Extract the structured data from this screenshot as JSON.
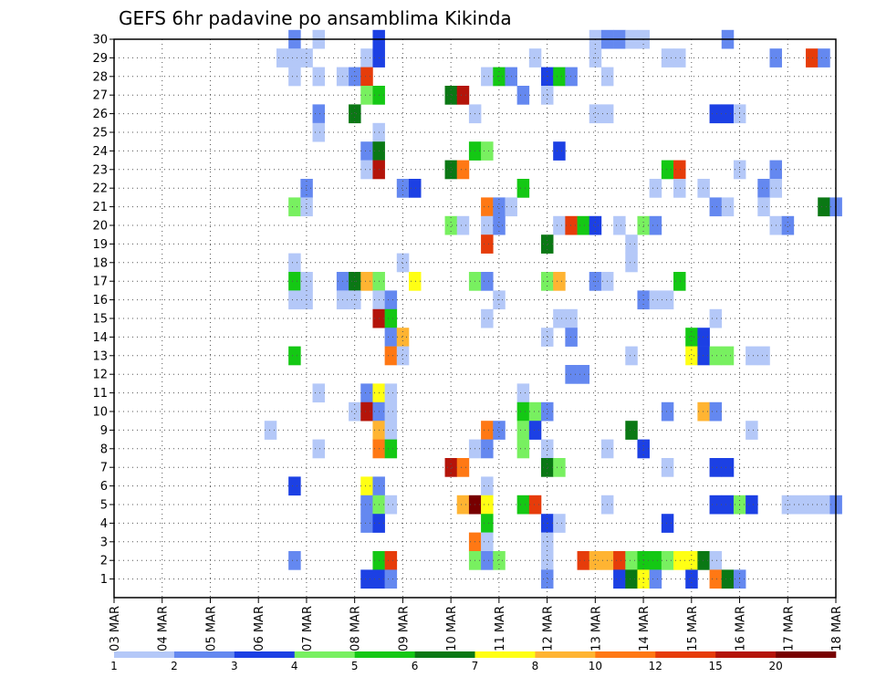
{
  "chart_data": {
    "type": "heatmap",
    "title": "GEFS 6hr padavine po ansamblima Kikinda",
    "x_tick_labels": [
      "03 MAR",
      "04 MAR",
      "05 MAR",
      "06 MAR",
      "07 MAR",
      "08 MAR",
      "09 MAR",
      "10 MAR",
      "11 MAR",
      "12 MAR",
      "13 MAR",
      "14 MAR",
      "15 MAR",
      "16 MAR",
      "17 MAR",
      "18 MAR"
    ],
    "y_tick_labels": [
      "1",
      "2",
      "3",
      "4",
      "5",
      "6",
      "7",
      "8",
      "9",
      "10",
      "11",
      "12",
      "13",
      "14",
      "15",
      "16",
      "17",
      "18",
      "19",
      "20",
      "21",
      "22",
      "23",
      "24",
      "25",
      "26",
      "27",
      "28",
      "29",
      "30"
    ],
    "xlim": [
      0,
      60
    ],
    "ylim": [
      0,
      30
    ],
    "x_unit": "6-hour steps from 03 MAR 00Z",
    "grid": true,
    "legend": {
      "position": "bottom",
      "tick_labels": [
        "1",
        "2",
        "3",
        "4",
        "5",
        "6",
        "7",
        "8",
        "10",
        "12",
        "15",
        "20"
      ],
      "colors": [
        "#b4c8f8",
        "#6488f0",
        "#1c40e4",
        "#78f060",
        "#14c814",
        "#0a7814",
        "#ffff14",
        "#ffb432",
        "#ff7814",
        "#e63c0a",
        "#b4140a",
        "#780000"
      ]
    },
    "palette": {
      "c1": "#b4c8f8",
      "c2": "#6488f0",
      "c3": "#1c40e4",
      "c4": "#78f060",
      "c5": "#14c814",
      "c6": "#0a7814",
      "c7": "#ffff14",
      "c8": "#ffb432",
      "c9": "#ff7814",
      "c10": "#e63c0a",
      "c11": "#b4140a",
      "c12": "#780000"
    },
    "cells": [
      [
        "30",
        [
          [
            15,
            "c2"
          ],
          [
            17,
            "c1"
          ],
          [
            22,
            "c3"
          ],
          [
            40,
            "c1"
          ],
          [
            41,
            "c2"
          ],
          [
            42,
            "c2"
          ],
          [
            43,
            "c1"
          ],
          [
            44,
            "c1"
          ],
          [
            51,
            "c2"
          ]
        ]
      ],
      [
        "29",
        [
          [
            14,
            "c1"
          ],
          [
            15,
            "c1"
          ],
          [
            16,
            "c1"
          ],
          [
            21,
            "c1"
          ],
          [
            22,
            "c3"
          ],
          [
            35,
            "c1"
          ],
          [
            40,
            "c1"
          ],
          [
            46,
            "c1"
          ],
          [
            47,
            "c1"
          ],
          [
            55,
            "c2"
          ],
          [
            58,
            "c10"
          ],
          [
            59,
            "c2"
          ]
        ]
      ],
      [
        "28",
        [
          [
            15,
            "c1"
          ],
          [
            17,
            "c1"
          ],
          [
            19,
            "c1"
          ],
          [
            20,
            "c2"
          ],
          [
            21,
            "c10"
          ],
          [
            31,
            "c1"
          ],
          [
            32,
            "c5"
          ],
          [
            33,
            "c2"
          ],
          [
            36,
            "c3"
          ],
          [
            37,
            "c5"
          ],
          [
            38,
            "c2"
          ],
          [
            41,
            "c1"
          ]
        ]
      ],
      [
        "27",
        [
          [
            21,
            "c4"
          ],
          [
            22,
            "c5"
          ],
          [
            28,
            "c6"
          ],
          [
            29,
            "c11"
          ],
          [
            34,
            "c2"
          ],
          [
            36,
            "c1"
          ]
        ]
      ],
      [
        "26",
        [
          [
            17,
            "c2"
          ],
          [
            20,
            "c6"
          ],
          [
            30,
            "c1"
          ],
          [
            40,
            "c1"
          ],
          [
            41,
            "c1"
          ],
          [
            50,
            "c3"
          ],
          [
            51,
            "c3"
          ],
          [
            52,
            "c1"
          ]
        ]
      ],
      [
        "25",
        [
          [
            17,
            "c1"
          ],
          [
            22,
            "c1"
          ]
        ]
      ],
      [
        "24",
        [
          [
            21,
            "c2"
          ],
          [
            22,
            "c6"
          ],
          [
            30,
            "c5"
          ],
          [
            31,
            "c4"
          ],
          [
            37,
            "c3"
          ]
        ]
      ],
      [
        "23",
        [
          [
            21,
            "c1"
          ],
          [
            22,
            "c11"
          ],
          [
            28,
            "c6"
          ],
          [
            29,
            "c9"
          ],
          [
            46,
            "c5"
          ],
          [
            47,
            "c10"
          ],
          [
            52,
            "c1"
          ],
          [
            55,
            "c2"
          ]
        ]
      ],
      [
        "22",
        [
          [
            16,
            "c2"
          ],
          [
            24,
            "c2"
          ],
          [
            25,
            "c3"
          ],
          [
            34,
            "c5"
          ],
          [
            45,
            "c1"
          ],
          [
            47,
            "c1"
          ],
          [
            49,
            "c1"
          ],
          [
            54,
            "c2"
          ],
          [
            55,
            "c1"
          ]
        ]
      ],
      [
        "21",
        [
          [
            15,
            "c4"
          ],
          [
            16,
            "c1"
          ],
          [
            31,
            "c9"
          ],
          [
            32,
            "c2"
          ],
          [
            33,
            "c1"
          ],
          [
            50,
            "c2"
          ],
          [
            51,
            "c1"
          ],
          [
            54,
            "c1"
          ],
          [
            59,
            "c6"
          ],
          [
            60,
            "c2"
          ]
        ]
      ],
      [
        "20",
        [
          [
            28,
            "c4"
          ],
          [
            29,
            "c1"
          ],
          [
            31,
            "c1"
          ],
          [
            32,
            "c2"
          ],
          [
            37,
            "c1"
          ],
          [
            38,
            "c10"
          ],
          [
            39,
            "c5"
          ],
          [
            40,
            "c3"
          ],
          [
            42,
            "c1"
          ],
          [
            44,
            "c4"
          ],
          [
            45,
            "c2"
          ],
          [
            55,
            "c1"
          ],
          [
            56,
            "c2"
          ]
        ]
      ],
      [
        "19",
        [
          [
            31,
            "c10"
          ],
          [
            36,
            "c6"
          ],
          [
            43,
            "c1"
          ]
        ]
      ],
      [
        "18",
        [
          [
            15,
            "c1"
          ],
          [
            24,
            "c1"
          ],
          [
            43,
            "c1"
          ]
        ]
      ],
      [
        "17",
        [
          [
            15,
            "c5"
          ],
          [
            16,
            "c1"
          ],
          [
            19,
            "c2"
          ],
          [
            20,
            "c6"
          ],
          [
            21,
            "c8"
          ],
          [
            22,
            "c4"
          ],
          [
            25,
            "c7"
          ],
          [
            30,
            "c4"
          ],
          [
            31,
            "c2"
          ],
          [
            36,
            "c4"
          ],
          [
            37,
            "c8"
          ],
          [
            40,
            "c2"
          ],
          [
            41,
            "c1"
          ],
          [
            47,
            "c5"
          ]
        ]
      ],
      [
        "16",
        [
          [
            15,
            "c1"
          ],
          [
            16,
            "c1"
          ],
          [
            19,
            "c1"
          ],
          [
            20,
            "c1"
          ],
          [
            22,
            "c1"
          ],
          [
            23,
            "c2"
          ],
          [
            32,
            "c1"
          ],
          [
            44,
            "c2"
          ],
          [
            45,
            "c1"
          ],
          [
            46,
            "c1"
          ]
        ]
      ],
      [
        "15",
        [
          [
            22,
            "c11"
          ],
          [
            23,
            "c5"
          ],
          [
            31,
            "c1"
          ],
          [
            37,
            "c1"
          ],
          [
            38,
            "c1"
          ],
          [
            50,
            "c1"
          ]
        ]
      ],
      [
        "14",
        [
          [
            23,
            "c2"
          ],
          [
            24,
            "c8"
          ],
          [
            36,
            "c1"
          ],
          [
            38,
            "c2"
          ],
          [
            48,
            "c5"
          ],
          [
            49,
            "c3"
          ]
        ]
      ],
      [
        "13",
        [
          [
            15,
            "c5"
          ],
          [
            23,
            "c9"
          ],
          [
            24,
            "c1"
          ],
          [
            43,
            "c1"
          ],
          [
            48,
            "c7"
          ],
          [
            49,
            "c3"
          ],
          [
            50,
            "c4"
          ],
          [
            51,
            "c4"
          ],
          [
            53,
            "c1"
          ],
          [
            54,
            "c1"
          ]
        ]
      ],
      [
        "12",
        [
          [
            38,
            "c2"
          ],
          [
            39,
            "c2"
          ]
        ]
      ],
      [
        "11",
        [
          [
            17,
            "c1"
          ],
          [
            21,
            "c2"
          ],
          [
            22,
            "c7"
          ],
          [
            23,
            "c1"
          ],
          [
            34,
            "c1"
          ]
        ]
      ],
      [
        "10",
        [
          [
            20,
            "c1"
          ],
          [
            21,
            "c11"
          ],
          [
            22,
            "c2"
          ],
          [
            23,
            "c1"
          ],
          [
            34,
            "c5"
          ],
          [
            35,
            "c4"
          ],
          [
            36,
            "c2"
          ],
          [
            46,
            "c2"
          ],
          [
            49,
            "c8"
          ],
          [
            50,
            "c2"
          ]
        ]
      ],
      [
        "9",
        [
          [
            13,
            "c1"
          ],
          [
            22,
            "c8"
          ],
          [
            23,
            "c1"
          ],
          [
            31,
            "c9"
          ],
          [
            32,
            "c2"
          ],
          [
            34,
            "c4"
          ],
          [
            35,
            "c3"
          ],
          [
            43,
            "c6"
          ],
          [
            53,
            "c1"
          ]
        ]
      ],
      [
        "8",
        [
          [
            17,
            "c1"
          ],
          [
            22,
            "c9"
          ],
          [
            23,
            "c5"
          ],
          [
            30,
            "c1"
          ],
          [
            31,
            "c2"
          ],
          [
            34,
            "c4"
          ],
          [
            36,
            "c1"
          ],
          [
            41,
            "c1"
          ],
          [
            44,
            "c3"
          ]
        ]
      ],
      [
        "7",
        [
          [
            28,
            "c11"
          ],
          [
            29,
            "c9"
          ],
          [
            36,
            "c6"
          ],
          [
            37,
            "c4"
          ],
          [
            46,
            "c1"
          ],
          [
            50,
            "c3"
          ],
          [
            51,
            "c3"
          ]
        ]
      ],
      [
        "6",
        [
          [
            15,
            "c3"
          ],
          [
            21,
            "c7"
          ],
          [
            22,
            "c2"
          ],
          [
            31,
            "c1"
          ]
        ]
      ],
      [
        "5",
        [
          [
            21,
            "c2"
          ],
          [
            22,
            "c4"
          ],
          [
            23,
            "c1"
          ],
          [
            29,
            "c8"
          ],
          [
            30,
            "c12"
          ],
          [
            31,
            "c7"
          ],
          [
            34,
            "c5"
          ],
          [
            35,
            "c10"
          ],
          [
            41,
            "c1"
          ],
          [
            50,
            "c3"
          ],
          [
            51,
            "c3"
          ],
          [
            52,
            "c4"
          ],
          [
            53,
            "c3"
          ],
          [
            56,
            "c1"
          ],
          [
            57,
            "c1"
          ],
          [
            58,
            "c1"
          ],
          [
            59,
            "c1"
          ],
          [
            60,
            "c2"
          ]
        ]
      ],
      [
        "4",
        [
          [
            21,
            "c2"
          ],
          [
            22,
            "c3"
          ],
          [
            31,
            "c5"
          ],
          [
            36,
            "c3"
          ],
          [
            37,
            "c1"
          ],
          [
            46,
            "c3"
          ]
        ]
      ],
      [
        "3",
        [
          [
            30,
            "c9"
          ],
          [
            31,
            "c1"
          ],
          [
            36,
            "c1"
          ]
        ]
      ],
      [
        "2",
        [
          [
            15,
            "c2"
          ],
          [
            22,
            "c5"
          ],
          [
            23,
            "c10"
          ],
          [
            30,
            "c4"
          ],
          [
            31,
            "c2"
          ],
          [
            32,
            "c4"
          ],
          [
            36,
            "c1"
          ],
          [
            39,
            "c10"
          ],
          [
            40,
            "c8"
          ],
          [
            41,
            "c8"
          ],
          [
            42,
            "c10"
          ],
          [
            43,
            "c4"
          ],
          [
            44,
            "c5"
          ],
          [
            45,
            "c5"
          ],
          [
            46,
            "c4"
          ],
          [
            47,
            "c7"
          ],
          [
            48,
            "c7"
          ],
          [
            49,
            "c6"
          ],
          [
            50,
            "c1"
          ]
        ]
      ],
      [
        "1",
        [
          [
            21,
            "c3"
          ],
          [
            22,
            "c3"
          ],
          [
            23,
            "c2"
          ],
          [
            36,
            "c2"
          ],
          [
            42,
            "c3"
          ],
          [
            43,
            "c6"
          ],
          [
            44,
            "c7"
          ],
          [
            45,
            "c2"
          ],
          [
            48,
            "c3"
          ],
          [
            50,
            "c9"
          ],
          [
            51,
            "c6"
          ],
          [
            52,
            "c2"
          ]
        ]
      ]
    ]
  }
}
